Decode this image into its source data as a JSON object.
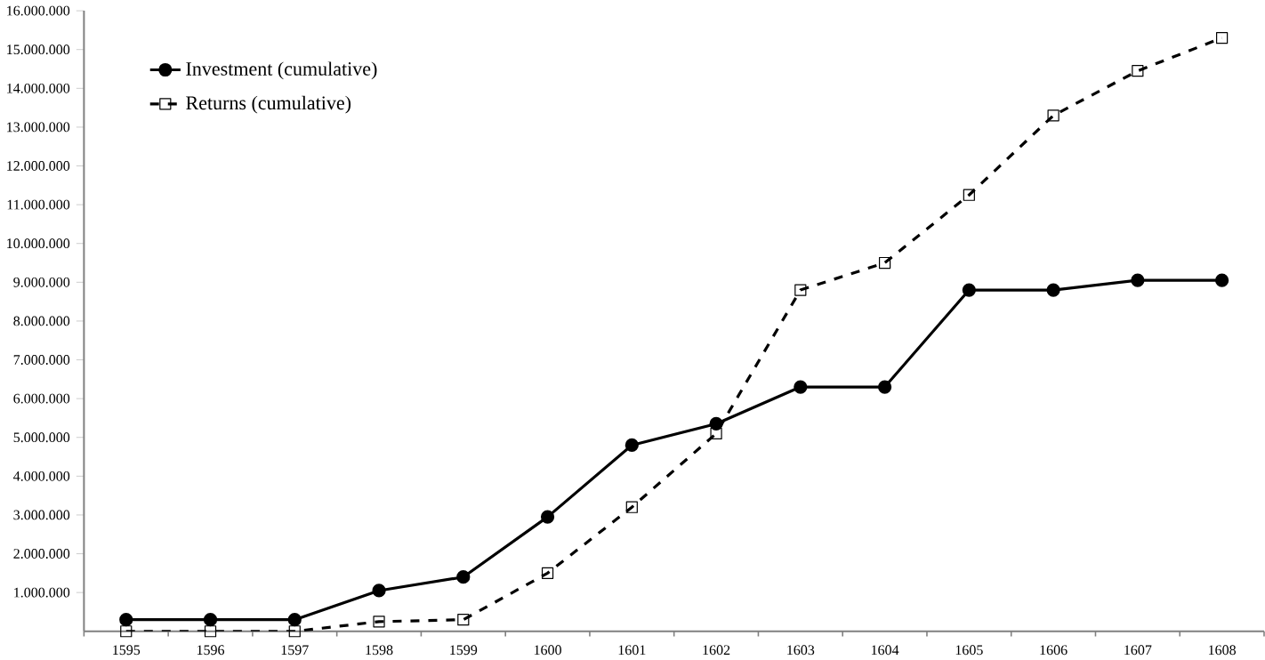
{
  "chart_data": {
    "type": "line",
    "categories": [
      "1595",
      "1596",
      "1597",
      "1598",
      "1599",
      "1600",
      "1601",
      "1602",
      "1603",
      "1604",
      "1605",
      "1606",
      "1607",
      "1608"
    ],
    "series": [
      {
        "name": "Investment (cumulative)",
        "color": "#000000",
        "marker": "circle",
        "line_style": "solid",
        "values": [
          300000,
          300000,
          300000,
          1050000,
          1400000,
          2950000,
          4800000,
          5350000,
          6300000,
          6300000,
          8800000,
          8800000,
          9050000,
          9050000
        ]
      },
      {
        "name": "Returns (cumulative)",
        "color": "#000000",
        "marker": "square",
        "line_style": "dashed",
        "values": [
          0,
          0,
          0,
          250000,
          300000,
          1500000,
          3200000,
          5100000,
          8800000,
          9500000,
          11250000,
          13300000,
          14450000,
          15300000
        ]
      }
    ],
    "ylim": [
      0,
      16000000
    ],
    "yticks": [
      {
        "value": 1000000,
        "label": "1.000.000"
      },
      {
        "value": 2000000,
        "label": "2.000.000"
      },
      {
        "value": 3000000,
        "label": "3.000.000"
      },
      {
        "value": 4000000,
        "label": "4.000.000"
      },
      {
        "value": 5000000,
        "label": "5.000.000"
      },
      {
        "value": 6000000,
        "label": "6.000.000"
      },
      {
        "value": 7000000,
        "label": "7.000.000"
      },
      {
        "value": 8000000,
        "label": "8.000.000"
      },
      {
        "value": 9000000,
        "label": "9.000.000"
      },
      {
        "value": 10000000,
        "label": "10.000.000"
      },
      {
        "value": 11000000,
        "label": "11.000.000"
      },
      {
        "value": 12000000,
        "label": "12.000.000"
      },
      {
        "value": 13000000,
        "label": "13.000.000"
      },
      {
        "value": 14000000,
        "label": "14.000.000"
      },
      {
        "value": 15000000,
        "label": "15.000.000"
      },
      {
        "value": 16000000,
        "label": "16.000.000"
      }
    ],
    "grid": false,
    "legend": "top left"
  }
}
